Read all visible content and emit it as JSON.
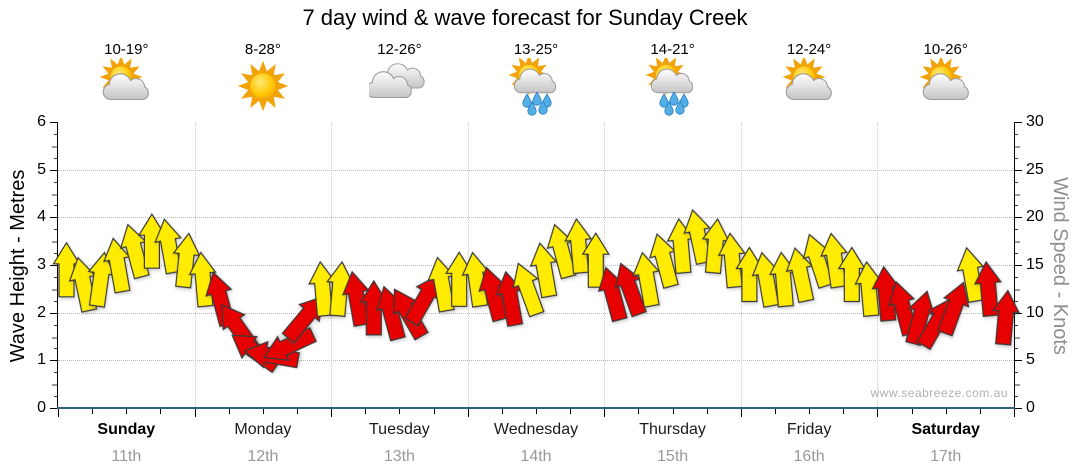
{
  "title": "7 day wind & wave forecast for Sunday Creek",
  "watermark": "www.seabreeze.com.au",
  "days": [
    {
      "name": "Sunday",
      "date": "11th",
      "temp": "10-19°",
      "icon": "sun-cloud",
      "bold": true
    },
    {
      "name": "Monday",
      "date": "12th",
      "temp": "8-28°",
      "icon": "sun",
      "bold": false
    },
    {
      "name": "Tuesday",
      "date": "13th",
      "temp": "12-26°",
      "icon": "clouds",
      "bold": false
    },
    {
      "name": "Wednesday",
      "date": "14th",
      "temp": "13-25°",
      "icon": "sun-cloud-rain",
      "bold": false
    },
    {
      "name": "Thursday",
      "date": "15th",
      "temp": "14-21°",
      "icon": "sun-cloud-rain",
      "bold": false
    },
    {
      "name": "Friday",
      "date": "16th",
      "temp": "12-24°",
      "icon": "sun-cloud",
      "bold": false
    },
    {
      "name": "Saturday",
      "date": "17th",
      "temp": "10-26°",
      "icon": "sun-cloud",
      "bold": true
    }
  ],
  "chart_data": {
    "type": "wind-arrows-time-series",
    "title": "7 day wind & wave forecast for Sunday Creek",
    "left_axis": {
      "label": "Wave Height - Metres",
      "min": 0,
      "max": 6,
      "ticks": [
        0,
        1,
        2,
        3,
        4,
        5,
        6
      ],
      "grid_values": [
        1,
        2,
        3,
        4,
        5
      ]
    },
    "right_axis": {
      "label": "Wind Speed - Knots",
      "min": 0,
      "max": 30,
      "ticks": [
        0,
        5,
        10,
        15,
        20,
        25,
        30
      ]
    },
    "x_axis": {
      "unit": "3-hour steps over 7 days",
      "day_boundaries_gridded": true
    },
    "wave_height_m_series": [
      0,
      0,
      0,
      0,
      0,
      0,
      0
    ],
    "wind_arrows_note": "56 arrows, 8 per day (3-hourly). Each entry: [wind speed in knots, color y=yellow r=red, rotation degrees (0 = pointing up)]",
    "wind_arrows": [
      [
        14.5,
        "y",
        0
      ],
      [
        13,
        "y",
        -12
      ],
      [
        13.5,
        "y",
        8
      ],
      [
        15,
        "y",
        -10
      ],
      [
        16.5,
        "y",
        -15
      ],
      [
        17.5,
        "y",
        0
      ],
      [
        17,
        "y",
        -10
      ],
      [
        15.5,
        "y",
        6
      ],
      [
        13.5,
        "y",
        -5
      ],
      [
        11.5,
        "r",
        -15
      ],
      [
        8.5,
        "r",
        -35
      ],
      [
        6,
        "r",
        -55
      ],
      [
        5.5,
        "r",
        -80
      ],
      [
        6.5,
        "r",
        -115
      ],
      [
        9.5,
        "r",
        40
      ],
      [
        12.5,
        "y",
        -5
      ],
      [
        12.5,
        "y",
        5
      ],
      [
        11.5,
        "r",
        -10
      ],
      [
        10.5,
        "r",
        0
      ],
      [
        10,
        "r",
        -15
      ],
      [
        10,
        "r",
        -30
      ],
      [
        11.5,
        "r",
        30
      ],
      [
        13,
        "y",
        -10
      ],
      [
        13.5,
        "y",
        0
      ],
      [
        13.5,
        "y",
        -8
      ],
      [
        12,
        "r",
        -15
      ],
      [
        11.5,
        "r",
        -10
      ],
      [
        12.5,
        "y",
        -20
      ],
      [
        14.5,
        "y",
        -10
      ],
      [
        16.5,
        "y",
        -15
      ],
      [
        17,
        "y",
        -5
      ],
      [
        15.5,
        "y",
        0
      ],
      [
        12,
        "r",
        -15
      ],
      [
        12.5,
        "r",
        -20
      ],
      [
        13.5,
        "y",
        -10
      ],
      [
        15.5,
        "y",
        -15
      ],
      [
        17,
        "y",
        -5
      ],
      [
        18,
        "y",
        -12
      ],
      [
        17,
        "y",
        5
      ],
      [
        15.5,
        "y",
        -5
      ],
      [
        14,
        "y",
        0
      ],
      [
        13.5,
        "y",
        -10
      ],
      [
        13.5,
        "y",
        -5
      ],
      [
        14,
        "y",
        -12
      ],
      [
        15.5,
        "y",
        -18
      ],
      [
        15.5,
        "y",
        -8
      ],
      [
        14,
        "y",
        0
      ],
      [
        12.5,
        "y",
        -5
      ],
      [
        12,
        "r",
        -5
      ],
      [
        10.5,
        "r",
        -15
      ],
      [
        9.5,
        "r",
        15
      ],
      [
        9,
        "r",
        30
      ],
      [
        10.5,
        "r",
        20
      ],
      [
        14,
        "y",
        -10
      ],
      [
        12.5,
        "r",
        -5
      ],
      [
        9.5,
        "r",
        5
      ]
    ],
    "colors": {
      "arrow_yellow": "#ffec00",
      "arrow_red": "#e60000",
      "arrow_stroke": "#3a3a3a",
      "baseline_blue": "#2f627a",
      "axis_black": "#000000",
      "grid_gray": "#b8b8b8",
      "day_separator_gray": "#cccccc",
      "date_gray": "#999999",
      "right_label_gray": "#8e8e8e",
      "watermark_gray": "#b0b0b0",
      "sun_ray": "#f2a30a",
      "sun_core": "#ffc905",
      "cloud_light": "#ffffff",
      "cloud_dark": "#c4c4c4",
      "cloud_stroke": "#9c9c9c",
      "rain_blue": "#52aee4",
      "rain_stroke": "#2b7fc2"
    }
  }
}
